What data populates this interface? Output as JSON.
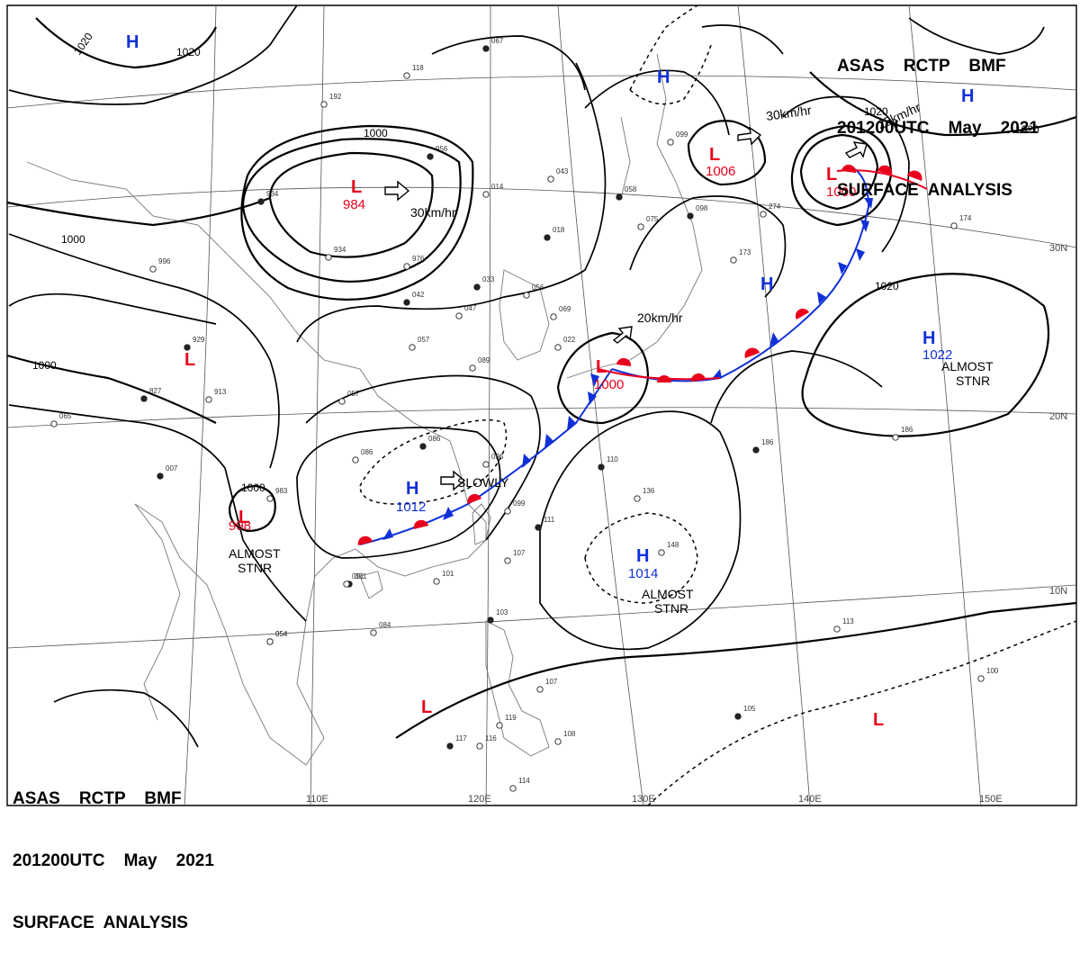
{
  "header": {
    "line1": "ASAS    RCTP    BMF",
    "line2": "201200UTC    May    2021",
    "line3": "SURFACE  ANALYSIS"
  },
  "grid": {
    "lon_labels": [
      "110E",
      "120E",
      "130E",
      "140E",
      "150E"
    ],
    "lat_labels": [
      "30N",
      "20N",
      "10N"
    ]
  },
  "isobars": [
    "1020",
    "1020",
    "1020",
    "1020",
    "1020",
    "1000",
    "1000",
    "1000",
    "1000"
  ],
  "pressure_centers": [
    {
      "type": "H",
      "value": ""
    },
    {
      "type": "H",
      "value": ""
    },
    {
      "type": "H",
      "value": ""
    },
    {
      "type": "L",
      "value": "984"
    },
    {
      "type": "L",
      "value": "1006"
    },
    {
      "type": "L",
      "value": "1000"
    },
    {
      "type": "H",
      "value": ""
    },
    {
      "type": "L",
      "value": ""
    },
    {
      "type": "L",
      "value": "1000"
    },
    {
      "type": "H",
      "value": "1022"
    },
    {
      "type": "H",
      "value": "1012"
    },
    {
      "type": "L",
      "value": "998"
    },
    {
      "type": "H",
      "value": "1014"
    },
    {
      "type": "L",
      "value": ""
    },
    {
      "type": "L",
      "value": ""
    }
  ],
  "motion_labels": [
    "30km/hr",
    "30km/hr",
    "25km/hr",
    "20km/hr",
    "SLOWLY"
  ],
  "stationary_labels": [
    {
      "line1": "ALMOST",
      "line2": "STNR"
    },
    {
      "line1": "ALMOST",
      "line2": "STNR"
    },
    {
      "line1": "ALMOST",
      "line2": "STNR"
    }
  ],
  "colors": {
    "low": "#e8001c",
    "high": "#1030d8",
    "isobar": "#000000",
    "grid": "#555555"
  },
  "station_plots": [
    "067",
    "118",
    "192",
    "956",
    "014",
    "043",
    "058",
    "099",
    "075",
    "098",
    "274",
    "174",
    "934",
    "934",
    "976",
    "033",
    "056",
    "069",
    "018",
    "173",
    "996",
    "042",
    "047",
    "022",
    "929",
    "057",
    "089",
    "827",
    "913",
    "057",
    "086",
    "086",
    "096",
    "110",
    "136",
    "148",
    "007",
    "983",
    "099",
    "111",
    "107",
    "101",
    "051",
    "051",
    "084",
    "103",
    "108",
    "113",
    "054",
    "054",
    "100",
    "105",
    "116",
    "114",
    "117",
    "119",
    "107",
    "186",
    "186",
    "065"
  ]
}
